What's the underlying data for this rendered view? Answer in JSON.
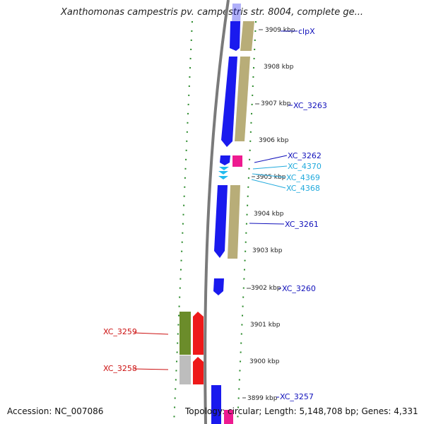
{
  "title": "Xanthomonas campestris pv. campestris str. 8004, complete ge...",
  "footer": {
    "accession": "Accession: NC_007086",
    "topology": "Topology: circular; Length: 5,148,708 bp; Genes: 4,331"
  },
  "colors": {
    "forward_cds": "#1a1aee",
    "reverse_cds": "#ee1a1a",
    "tan_feature": "#b8ad78",
    "olive_feature": "#6b8c2a",
    "grey_feature": "#bdbdbd",
    "pink_feature": "#ee1a90",
    "cyan_feature": "#22bbee",
    "backbone": "#808080",
    "gc_skew": "#2a8a2a"
  },
  "kbp_labels": [
    "3909 kbp",
    "3908 kbp",
    "3907 kbp",
    "3906 kbp",
    "3905 kbp",
    "3904 kbp",
    "3903 kbp",
    "3902 kbp",
    "3901 kbp",
    "3900 kbp",
    "3899 kbp"
  ],
  "genes_forward": [
    "clpX",
    "XC_3263",
    "XC_3262",
    "XC_4370",
    "XC_4369",
    "XC_4368",
    "XC_3261",
    "XC_3260",
    "XC_3257"
  ],
  "genes_reverse": [
    "XC_3259",
    "XC_3258"
  ]
}
